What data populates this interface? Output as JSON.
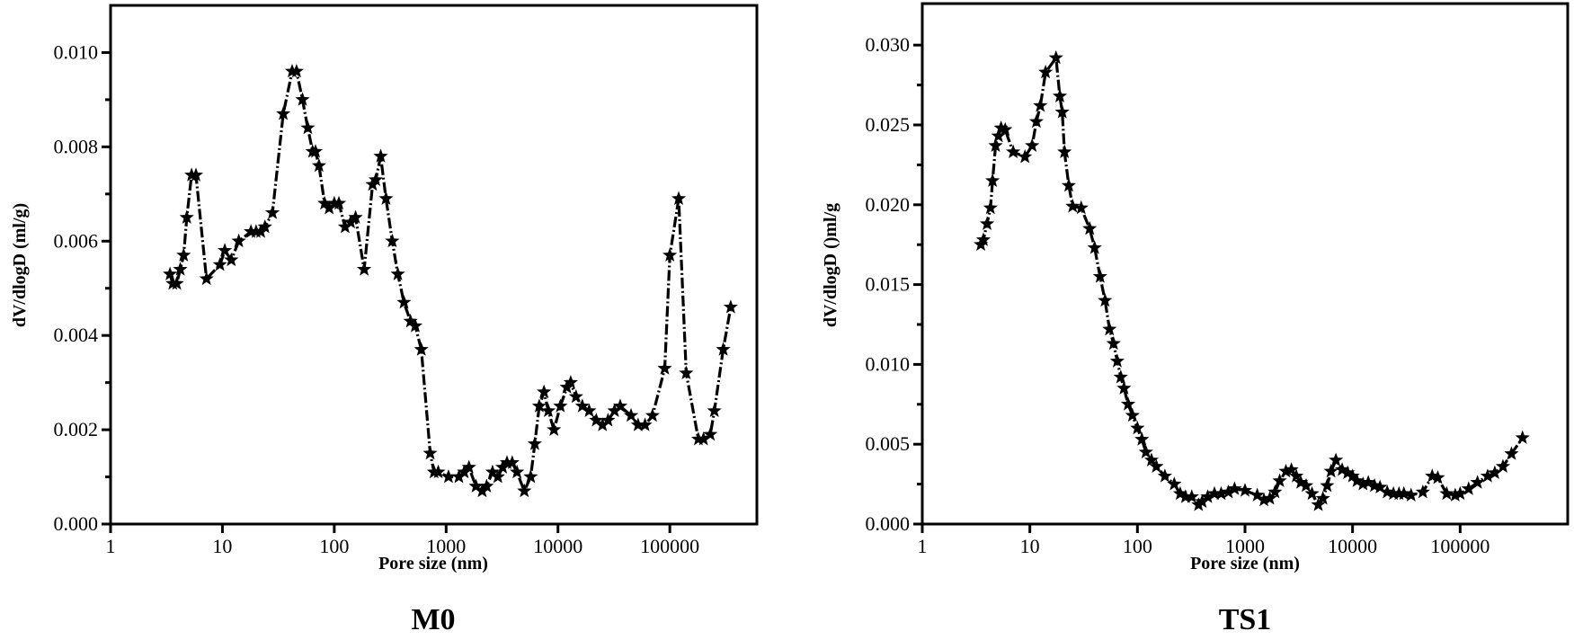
{
  "chart_data": [
    {
      "type": "line",
      "panel_label": "M0",
      "xlabel": "Pore size (nm)",
      "ylabel": "dV/dlogD (ml/g)",
      "x_scale": "log",
      "xlim": [
        1,
        600000
      ],
      "ylim": [
        0,
        0.011
      ],
      "x_ticks": [
        "1",
        "10",
        "100",
        "1000",
        "10000",
        "100000"
      ],
      "y_ticks": [
        "0.000",
        "0.002",
        "0.004",
        "0.006",
        "0.008",
        "0.010"
      ],
      "marker": "star",
      "line_style": "dash-dot",
      "color": "#000000",
      "grid": false,
      "series": [
        {
          "x": [
            3.4,
            3.6,
            3.9,
            4.2,
            4.5,
            4.8,
            5.3,
            5.8,
            7.2,
            9.5,
            10.5,
            12,
            14,
            18,
            20,
            22,
            24,
            28,
            35,
            42,
            46,
            52,
            58,
            64,
            68,
            73,
            82,
            90,
            100,
            110,
            125,
            140,
            155,
            185,
            220,
            235,
            260,
            290,
            330,
            370,
            420,
            480,
            530,
            600,
            720,
            780,
            850,
            1050,
            1300,
            1450,
            1600,
            1850,
            2100,
            2300,
            2600,
            2900,
            3200,
            3500,
            3900,
            4300,
            5000,
            5700,
            6200,
            6800,
            7500,
            8200,
            9200,
            10500,
            12000,
            13000,
            14500,
            16500,
            19000,
            22000,
            25000,
            28000,
            32000,
            36000,
            45000,
            52000,
            60000,
            70000,
            90000,
            100000,
            120000,
            140000,
            180000,
            200000,
            230000,
            250000,
            300000,
            350000
          ],
          "y": [
            0.0053,
            0.0051,
            0.0051,
            0.0054,
            0.0057,
            0.0065,
            0.0074,
            0.0074,
            0.0052,
            0.0055,
            0.0058,
            0.0056,
            0.006,
            0.0062,
            0.0062,
            0.0062,
            0.0063,
            0.0066,
            0.0087,
            0.0096,
            0.0096,
            0.009,
            0.0084,
            0.0079,
            0.0079,
            0.0076,
            0.0068,
            0.0067,
            0.0068,
            0.0068,
            0.0063,
            0.0064,
            0.0065,
            0.0054,
            0.0072,
            0.0073,
            0.0078,
            0.0069,
            0.006,
            0.0053,
            0.0047,
            0.0043,
            0.0042,
            0.0037,
            0.0015,
            0.0011,
            0.0011,
            0.001,
            0.001,
            0.0011,
            0.0012,
            0.0008,
            0.0007,
            0.0008,
            0.0011,
            0.001,
            0.0012,
            0.0013,
            0.0013,
            0.0011,
            0.0007,
            0.001,
            0.0017,
            0.0025,
            0.0028,
            0.0024,
            0.002,
            0.0025,
            0.0029,
            0.003,
            0.0027,
            0.0025,
            0.0024,
            0.0022,
            0.0021,
            0.0022,
            0.0024,
            0.0025,
            0.0023,
            0.0021,
            0.0021,
            0.0023,
            0.0033,
            0.0057,
            0.0069,
            0.0032,
            0.0018,
            0.0018,
            0.0019,
            0.0024,
            0.0037,
            0.0046
          ]
        }
      ]
    },
    {
      "type": "line",
      "panel_label": "TS1",
      "xlabel": "Pore size (nm)",
      "ylabel": "dV/dlogD ()ml/g",
      "x_scale": "log",
      "xlim": [
        1,
        1000000
      ],
      "ylim": [
        0,
        0.0326
      ],
      "x_ticks": [
        "1",
        "10",
        "100",
        "1000",
        "10000",
        "100000"
      ],
      "y_ticks": [
        "0.000",
        "0.005",
        "0.010",
        "0.015",
        "0.020",
        "0.025",
        "0.030"
      ],
      "marker": "star",
      "line_style": "dash-dot",
      "color": "#000000",
      "grid": false,
      "series": [
        {
          "x": [
            3.5,
            3.7,
            4.0,
            4.3,
            4.5,
            4.8,
            5.1,
            5.4,
            5.9,
            7,
            9,
            10.5,
            11.5,
            12.5,
            14,
            17.5,
            19,
            20,
            21,
            23,
            25,
            30,
            36,
            40,
            45,
            50,
            55,
            60,
            65,
            70,
            75,
            82,
            90,
            100,
            110,
            120,
            135,
            150,
            180,
            220,
            250,
            280,
            320,
            370,
            400,
            450,
            520,
            600,
            700,
            800,
            1000,
            1300,
            1500,
            1700,
            1900,
            2100,
            2400,
            2700,
            3000,
            3300,
            3700,
            4200,
            4800,
            5300,
            5800,
            6300,
            7000,
            8000,
            9000,
            10000,
            11000,
            12500,
            14000,
            16000,
            18000,
            21000,
            24000,
            27000,
            30000,
            35000,
            45000,
            55000,
            62000,
            75000,
            90000,
            100000,
            120000,
            145000,
            180000,
            210000,
            250000,
            300000,
            380000
          ],
          "y": [
            0.0175,
            0.0178,
            0.0188,
            0.0198,
            0.0215,
            0.0237,
            0.0243,
            0.0248,
            0.0247,
            0.0233,
            0.023,
            0.0237,
            0.0252,
            0.0262,
            0.0283,
            0.0292,
            0.0268,
            0.0258,
            0.0233,
            0.0212,
            0.0199,
            0.0198,
            0.0185,
            0.0173,
            0.0155,
            0.014,
            0.0122,
            0.0113,
            0.0102,
            0.0092,
            0.0085,
            0.0075,
            0.0068,
            0.006,
            0.0053,
            0.0045,
            0.004,
            0.0036,
            0.003,
            0.0025,
            0.0019,
            0.0017,
            0.0017,
            0.0012,
            0.0014,
            0.0017,
            0.0019,
            0.0019,
            0.002,
            0.0022,
            0.0021,
            0.0018,
            0.0015,
            0.0016,
            0.002,
            0.0027,
            0.0033,
            0.0034,
            0.003,
            0.0026,
            0.0024,
            0.0019,
            0.0012,
            0.0016,
            0.0024,
            0.0033,
            0.004,
            0.0034,
            0.0032,
            0.003,
            0.0027,
            0.0025,
            0.0026,
            0.0024,
            0.0023,
            0.002,
            0.0019,
            0.0019,
            0.0019,
            0.0018,
            0.002,
            0.003,
            0.0029,
            0.0019,
            0.0018,
            0.0019,
            0.0022,
            0.0026,
            0.003,
            0.0032,
            0.0036,
            0.0044,
            0.0054
          ]
        }
      ]
    }
  ]
}
